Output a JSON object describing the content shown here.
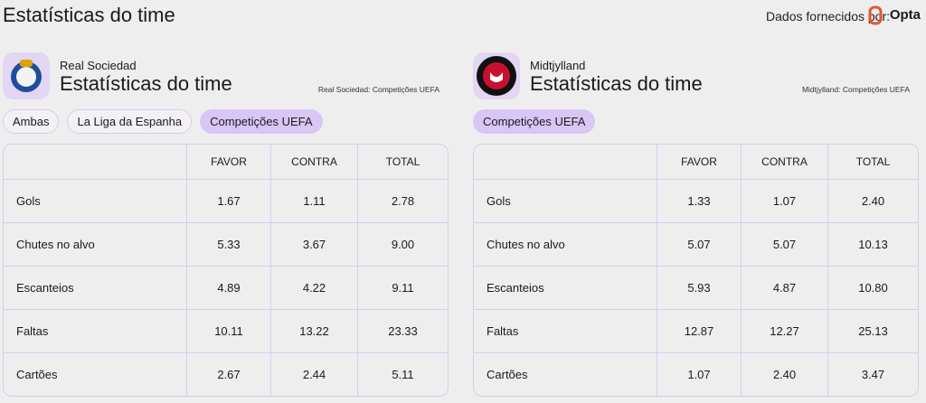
{
  "header": {
    "title": "Estatísticas do time",
    "provider_label": "Dados fornecidos por:",
    "provider_name": "Opta"
  },
  "panels": [
    {
      "team": "Real Sociedad",
      "title": "Estatísticas do time",
      "context": "Real Sociedad: Competições UEFA",
      "tabs": [
        {
          "label": "Ambas",
          "selected": false
        },
        {
          "label": "La Liga da Espanha",
          "selected": false
        },
        {
          "label": "Competições UEFA",
          "selected": true
        }
      ],
      "table": {
        "columns": [
          "FAVOR",
          "CONTRA",
          "TOTAL"
        ],
        "rows": [
          {
            "label": "Gols",
            "values": [
              "1.67",
              "1.11",
              "2.78"
            ]
          },
          {
            "label": "Chutes no alvo",
            "values": [
              "5.33",
              "3.67",
              "9.00"
            ]
          },
          {
            "label": "Escanteios",
            "values": [
              "4.89",
              "4.22",
              "9.11"
            ]
          },
          {
            "label": "Faltas",
            "values": [
              "10.11",
              "13.22",
              "23.33"
            ]
          },
          {
            "label": "Cartões",
            "values": [
              "2.67",
              "2.44",
              "5.11"
            ]
          }
        ]
      }
    },
    {
      "team": "Midtjylland",
      "title": "Estatísticas do time",
      "context": "Midtjylland: Competições UEFA",
      "tabs": [
        {
          "label": "Competições UEFA",
          "selected": true
        }
      ],
      "table": {
        "columns": [
          "FAVOR",
          "CONTRA",
          "TOTAL"
        ],
        "rows": [
          {
            "label": "Gols",
            "values": [
              "1.33",
              "1.07",
              "2.40"
            ]
          },
          {
            "label": "Chutes no alvo",
            "values": [
              "5.07",
              "5.07",
              "10.13"
            ]
          },
          {
            "label": "Escanteios",
            "values": [
              "5.93",
              "4.87",
              "10.80"
            ]
          },
          {
            "label": "Faltas",
            "values": [
              "12.87",
              "12.27",
              "25.13"
            ]
          },
          {
            "label": "Cartões",
            "values": [
              "1.07",
              "2.40",
              "3.47"
            ]
          }
        ]
      }
    }
  ]
}
